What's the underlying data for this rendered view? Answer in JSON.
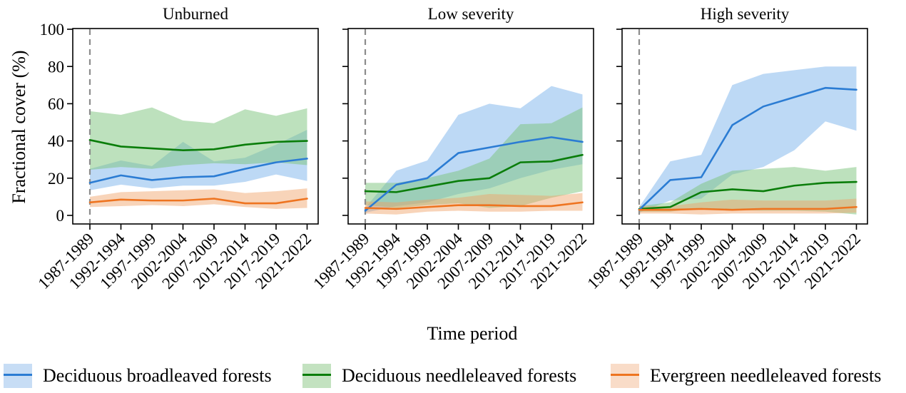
{
  "chart_data": {
    "type": "line",
    "title": "",
    "x_axis_label": "Time period",
    "y_axis_label": "Fractional cover (%)",
    "categories": [
      "1987-1989",
      "1992-1994",
      "1997-1999",
      "2002-2004",
      "2007-2009",
      "2012-2014",
      "2017-2019",
      "2021-2022"
    ],
    "y_ticks": [
      0,
      20,
      40,
      60,
      80,
      100
    ],
    "ylim": [
      -5,
      100
    ],
    "grid": false,
    "legend_position": "bottom",
    "reference_line": {
      "style": "vertical-dashed",
      "at_category": "1987-1989",
      "color": "#8c8c8c"
    },
    "panels": [
      {
        "title": "Unburned",
        "series": [
          {
            "name": "Deciduous broadleaved forests",
            "color": "#2b7cd3",
            "band_color": "#86b9ec",
            "band_opacity": 0.55,
            "mean": [
              17.5,
              21.5,
              19,
              20.5,
              21,
              25,
              28.5,
              30.5
            ],
            "band_low": [
              13.5,
              16.5,
              14.5,
              16,
              16,
              18,
              22,
              18.5
            ],
            "band_high": [
              25,
              29.5,
              26.5,
              39.5,
              29,
              31,
              38,
              46
            ]
          },
          {
            "name": "Deciduous needleleaved forests",
            "color": "#0a7d0a",
            "band_color": "#7cc47c",
            "band_opacity": 0.5,
            "mean": [
              40.5,
              37,
              36,
              35,
              35.5,
              38,
              39.5,
              40
            ],
            "band_low": [
              24.5,
              26,
              25,
              27,
              28,
              27.5,
              28.5,
              27
            ],
            "band_high": [
              56,
              54,
              58,
              51,
              49.5,
              57,
              53.5,
              57.5
            ]
          },
          {
            "name": "Evergreen needleleaved forests",
            "color": "#ee7420",
            "band_color": "#f0a063",
            "band_opacity": 0.45,
            "mean": [
              7,
              8.5,
              8,
              8,
              9,
              6.5,
              6.5,
              9
            ],
            "band_low": [
              4.5,
              5,
              5.5,
              5,
              6,
              4.5,
              3.5,
              4
            ],
            "band_high": [
              10,
              12.5,
              13,
              13.5,
              14,
              12,
              13,
              14.5
            ]
          }
        ]
      },
      {
        "title": "Low severity",
        "series": [
          {
            "name": "Deciduous broadleaved forests",
            "color": "#2b7cd3",
            "band_color": "#86b9ec",
            "band_opacity": 0.55,
            "mean": [
              2.5,
              16.5,
              20,
              33.5,
              36.5,
              39.5,
              42,
              39.5
            ],
            "band_low": [
              1.5,
              5,
              7,
              11.5,
              14.5,
              20,
              24.5,
              27.5
            ],
            "band_high": [
              4,
              24,
              29.5,
              54,
              60,
              57.5,
              69.5,
              65
            ]
          },
          {
            "name": "Deciduous needleleaved forests",
            "color": "#0a7d0a",
            "band_color": "#7cc47c",
            "band_opacity": 0.5,
            "mean": [
              13,
              12.5,
              15.5,
              18.5,
              20,
              28.5,
              29,
              32.5
            ],
            "band_low": [
              5.5,
              4,
              5.5,
              6.5,
              4,
              5,
              9.5,
              13
            ],
            "band_high": [
              17.5,
              17.5,
              20,
              24,
              30.5,
              49,
              49.5,
              58
            ]
          },
          {
            "name": "Evergreen needleleaved forests",
            "color": "#ee7420",
            "band_color": "#f0a063",
            "band_opacity": 0.45,
            "mean": [
              4,
              3.5,
              4.5,
              5.5,
              5.5,
              5,
              5,
              7
            ],
            "band_low": [
              1,
              0.5,
              2,
              2.5,
              2,
              2,
              2.5,
              2.5
            ],
            "band_high": [
              7.5,
              7,
              8.5,
              9.5,
              11.5,
              11,
              10.5,
              12
            ]
          }
        ]
      },
      {
        "title": "High severity",
        "series": [
          {
            "name": "Deciduous broadleaved forests",
            "color": "#2b7cd3",
            "band_color": "#86b9ec",
            "band_opacity": 0.55,
            "mean": [
              3,
              19,
              20.5,
              48.5,
              58.5,
              63.5,
              68.5,
              67.5
            ],
            "band_low": [
              1.5,
              8,
              9,
              22,
              26,
              35,
              50.5,
              45.5
            ],
            "band_high": [
              4.5,
              29,
              32.5,
              70,
              76,
              78,
              80,
              80
            ]
          },
          {
            "name": "Deciduous needleleaved forests",
            "color": "#0a7d0a",
            "band_color": "#7cc47c",
            "band_opacity": 0.5,
            "mean": [
              3.5,
              4.5,
              12.5,
              14,
              13,
              16,
              17.5,
              18
            ],
            "band_low": [
              2,
              2,
              4,
              3,
              2.5,
              2.5,
              2,
              0.5
            ],
            "band_high": [
              5,
              7,
              17,
              24,
              25,
              26,
              24,
              26
            ]
          },
          {
            "name": "Evergreen needleleaved forests",
            "color": "#ee7420",
            "band_color": "#f0a063",
            "band_opacity": 0.45,
            "mean": [
              3,
              3,
              3.5,
              3,
              3.5,
              3.5,
              3.5,
              4.5
            ],
            "band_low": [
              1,
              1,
              0.5,
              1,
              1,
              1,
              1,
              1.5
            ],
            "band_high": [
              5,
              5,
              7,
              8.5,
              8,
              8,
              8,
              9
            ]
          }
        ]
      }
    ]
  },
  "legend": {
    "items": [
      {
        "label": "Deciduous broadleaved forests",
        "line_color": "#2b7cd3",
        "fill_color": "#c7ddf5"
      },
      {
        "label": "Deciduous needleleaved forests",
        "line_color": "#0a7d0a",
        "fill_color": "#c3e2c0"
      },
      {
        "label": "Evergreen needleleaved forests",
        "line_color": "#ee7420",
        "fill_color": "#f9dcc8"
      }
    ]
  }
}
